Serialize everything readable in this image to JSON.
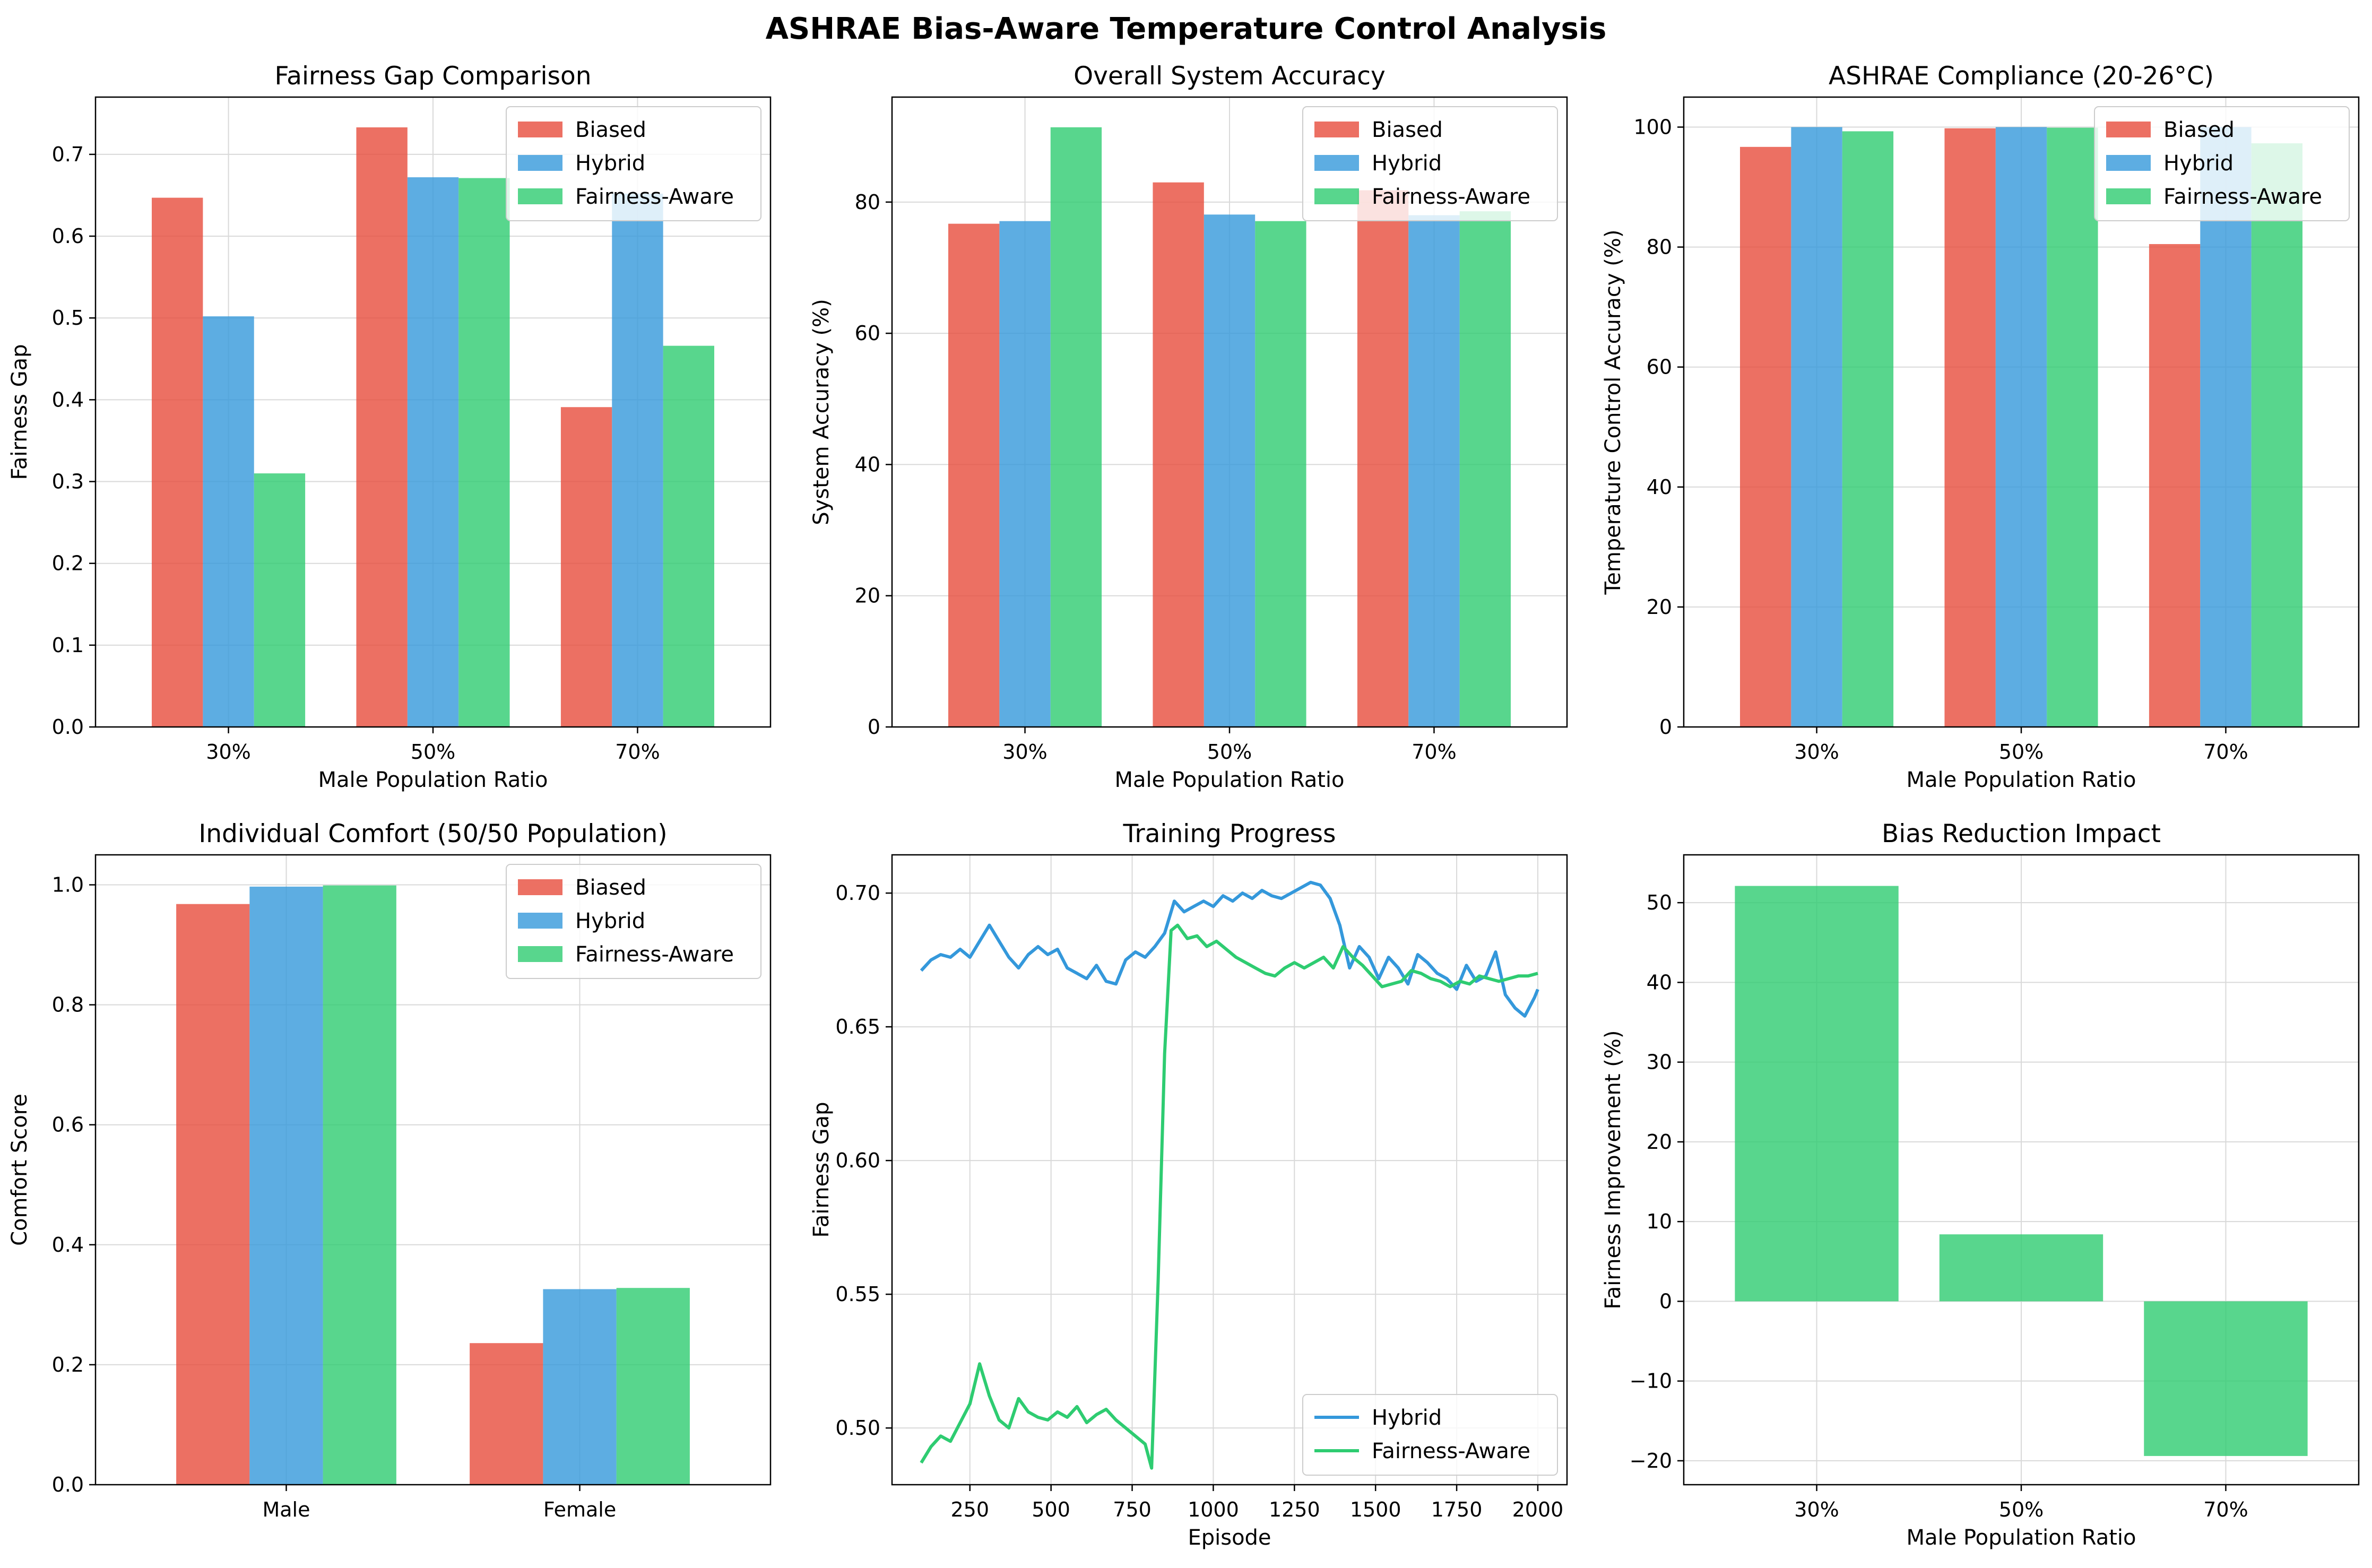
{
  "figure": {
    "title": "ASHRAE Bias-Aware Temperature Control Analysis"
  },
  "colors": {
    "biased": "#E74C3C",
    "hybrid": "#3498DB",
    "fairness_aware": "#2ECC71",
    "grid": "#d9d9d9",
    "axes": "#000000"
  },
  "chart_data": [
    {
      "id": "fairness-gap",
      "type": "bar",
      "title": "Fairness Gap Comparison",
      "xlabel": "Male Population Ratio",
      "ylabel": "Fairness Gap",
      "categories": [
        "30%",
        "50%",
        "70%"
      ],
      "series": [
        {
          "name": "Biased",
          "color_key": "biased",
          "values": [
            0.647,
            0.733,
            0.391
          ]
        },
        {
          "name": "Hybrid",
          "color_key": "hybrid",
          "values": [
            0.502,
            0.672,
            0.652
          ]
        },
        {
          "name": "Fairness-Aware",
          "color_key": "fairness_aware",
          "values": [
            0.31,
            0.671,
            0.466
          ]
        }
      ],
      "ylim": [
        0,
        0.77
      ],
      "yticks": [
        0.0,
        0.1,
        0.2,
        0.3,
        0.4,
        0.5,
        0.6,
        0.7
      ],
      "ytick_labels": [
        "0.0",
        "0.1",
        "0.2",
        "0.3",
        "0.4",
        "0.5",
        "0.6",
        "0.7"
      ],
      "legend": "top-right",
      "grid": true
    },
    {
      "id": "system-accuracy",
      "type": "bar",
      "title": "Overall System Accuracy",
      "xlabel": "Male Population Ratio",
      "ylabel": "System Accuracy (%)",
      "categories": [
        "30%",
        "50%",
        "70%"
      ],
      "series": [
        {
          "name": "Biased",
          "color_key": "biased",
          "values": [
            76.7,
            83.0,
            81.8
          ]
        },
        {
          "name": "Hybrid",
          "color_key": "hybrid",
          "values": [
            77.1,
            78.1,
            78.0
          ]
        },
        {
          "name": "Fairness-Aware",
          "color_key": "fairness_aware",
          "values": [
            91.4,
            77.1,
            78.6
          ]
        }
      ],
      "ylim": [
        0,
        96
      ],
      "yticks": [
        0,
        20,
        40,
        60,
        80
      ],
      "ytick_labels": [
        "0",
        "20",
        "40",
        "60",
        "80"
      ],
      "legend": "top-right",
      "grid": true
    },
    {
      "id": "ashrae-compliance",
      "type": "bar",
      "title": "ASHRAE Compliance (20-26°C)",
      "xlabel": "Male Population Ratio",
      "ylabel": "Temperature Control Accuracy (%)",
      "categories": [
        "30%",
        "50%",
        "70%"
      ],
      "series": [
        {
          "name": "Biased",
          "color_key": "biased",
          "values": [
            96.7,
            99.8,
            80.5
          ]
        },
        {
          "name": "Hybrid",
          "color_key": "hybrid",
          "values": [
            100.0,
            100.0,
            100.0
          ]
        },
        {
          "name": "Fairness-Aware",
          "color_key": "fairness_aware",
          "values": [
            99.3,
            99.9,
            97.3
          ]
        }
      ],
      "ylim": [
        0,
        105
      ],
      "yticks": [
        0,
        20,
        40,
        60,
        80,
        100
      ],
      "ytick_labels": [
        "0",
        "20",
        "40",
        "60",
        "80",
        "100"
      ],
      "legend": "top-right",
      "grid": true
    },
    {
      "id": "individual-comfort",
      "type": "bar",
      "title": "Individual Comfort (50/50 Population)",
      "xlabel": "",
      "ylabel": "Comfort Score",
      "categories": [
        "Male",
        "Female"
      ],
      "series": [
        {
          "name": "Biased",
          "color_key": "biased",
          "values": [
            0.968,
            0.236
          ]
        },
        {
          "name": "Hybrid",
          "color_key": "hybrid",
          "values": [
            0.997,
            0.326
          ]
        },
        {
          "name": "Fairness-Aware",
          "color_key": "fairness_aware",
          "values": [
            0.999,
            0.328
          ]
        }
      ],
      "ylim": [
        0,
        1.05
      ],
      "yticks": [
        0.0,
        0.2,
        0.4,
        0.6,
        0.8,
        1.0
      ],
      "ytick_labels": [
        "0.0",
        "0.2",
        "0.4",
        "0.6",
        "0.8",
        "1.0"
      ],
      "legend": "top-right",
      "grid": true
    },
    {
      "id": "training-progress",
      "type": "line",
      "title": "Training Progress",
      "xlabel": "Episode",
      "ylabel": "Fairness Gap",
      "xlim": [
        10,
        2090
      ],
      "ylim": [
        0.4788,
        0.7143
      ],
      "xticks": [
        250,
        500,
        750,
        1000,
        1250,
        1500,
        1750,
        2000
      ],
      "xtick_labels": [
        "250",
        "500",
        "750",
        "1000",
        "1250",
        "1500",
        "1750",
        "2000"
      ],
      "yticks": [
        0.5,
        0.55,
        0.6,
        0.65,
        0.7
      ],
      "ytick_labels": [
        "0.50",
        "0.55",
        "0.60",
        "0.65",
        "0.70"
      ],
      "series": [
        {
          "name": "Hybrid",
          "color_key": "hybrid",
          "x": [
            100,
            130,
            160,
            190,
            220,
            250,
            280,
            310,
            340,
            370,
            400,
            430,
            460,
            490,
            520,
            550,
            580,
            610,
            640,
            670,
            700,
            730,
            760,
            790,
            820,
            850,
            880,
            910,
            940,
            970,
            1000,
            1030,
            1060,
            1090,
            1120,
            1150,
            1180,
            1210,
            1240,
            1270,
            1300,
            1330,
            1360,
            1390,
            1420,
            1450,
            1480,
            1510,
            1540,
            1570,
            1600,
            1630,
            1660,
            1690,
            1720,
            1750,
            1780,
            1810,
            1840,
            1870,
            1900,
            1930,
            1960,
            1990,
            2000
          ],
          "y": [
            0.671,
            0.675,
            0.677,
            0.676,
            0.679,
            0.676,
            0.682,
            0.688,
            0.682,
            0.676,
            0.672,
            0.677,
            0.68,
            0.677,
            0.679,
            0.672,
            0.67,
            0.668,
            0.673,
            0.667,
            0.666,
            0.675,
            0.678,
            0.676,
            0.68,
            0.685,
            0.697,
            0.693,
            0.695,
            0.697,
            0.695,
            0.699,
            0.697,
            0.7,
            0.698,
            0.701,
            0.699,
            0.698,
            0.7,
            0.702,
            0.704,
            0.703,
            0.698,
            0.688,
            0.672,
            0.68,
            0.676,
            0.668,
            0.676,
            0.672,
            0.666,
            0.677,
            0.674,
            0.67,
            0.668,
            0.664,
            0.673,
            0.667,
            0.669,
            0.678,
            0.662,
            0.657,
            0.654,
            0.661,
            0.664
          ]
        },
        {
          "name": "Fairness-Aware",
          "color_key": "fairness_aware",
          "x": [
            100,
            130,
            160,
            190,
            220,
            250,
            280,
            310,
            340,
            370,
            400,
            430,
            460,
            490,
            520,
            550,
            580,
            610,
            640,
            670,
            700,
            730,
            760,
            790,
            810,
            830,
            850,
            870,
            890,
            920,
            950,
            980,
            1010,
            1040,
            1070,
            1100,
            1130,
            1160,
            1190,
            1220,
            1250,
            1280,
            1310,
            1340,
            1370,
            1400,
            1430,
            1460,
            1490,
            1520,
            1550,
            1580,
            1610,
            1640,
            1670,
            1700,
            1730,
            1760,
            1790,
            1820,
            1850,
            1880,
            1910,
            1940,
            1970,
            2000
          ],
          "y": [
            0.487,
            0.493,
            0.497,
            0.495,
            0.502,
            0.509,
            0.524,
            0.512,
            0.503,
            0.5,
            0.511,
            0.506,
            0.504,
            0.503,
            0.506,
            0.504,
            0.508,
            0.502,
            0.505,
            0.507,
            0.503,
            0.5,
            0.497,
            0.494,
            0.485,
            0.555,
            0.64,
            0.686,
            0.688,
            0.683,
            0.684,
            0.68,
            0.682,
            0.679,
            0.676,
            0.674,
            0.672,
            0.67,
            0.669,
            0.672,
            0.674,
            0.672,
            0.674,
            0.676,
            0.672,
            0.68,
            0.676,
            0.673,
            0.669,
            0.665,
            0.666,
            0.667,
            0.671,
            0.67,
            0.668,
            0.667,
            0.665,
            0.667,
            0.666,
            0.669,
            0.668,
            0.667,
            0.668,
            0.669,
            0.669,
            0.67
          ]
        }
      ],
      "legend": "bottom-right",
      "grid": true
    },
    {
      "id": "bias-reduction",
      "type": "bar",
      "title": "Bias Reduction Impact",
      "xlabel": "Male Population Ratio",
      "ylabel": "Fairness Improvement (%)",
      "categories": [
        "30%",
        "50%",
        "70%"
      ],
      "series": [
        {
          "color_key": "fairness_aware",
          "values": [
            52.1,
            8.4,
            -19.4
          ]
        }
      ],
      "ylim": [
        -23,
        56
      ],
      "yticks": [
        -20,
        -10,
        0,
        10,
        20,
        30,
        40,
        50
      ],
      "ytick_labels": [
        "−20",
        "−10",
        "0",
        "10",
        "20",
        "30",
        "40",
        "50"
      ],
      "legend": "none",
      "grid": true
    }
  ]
}
